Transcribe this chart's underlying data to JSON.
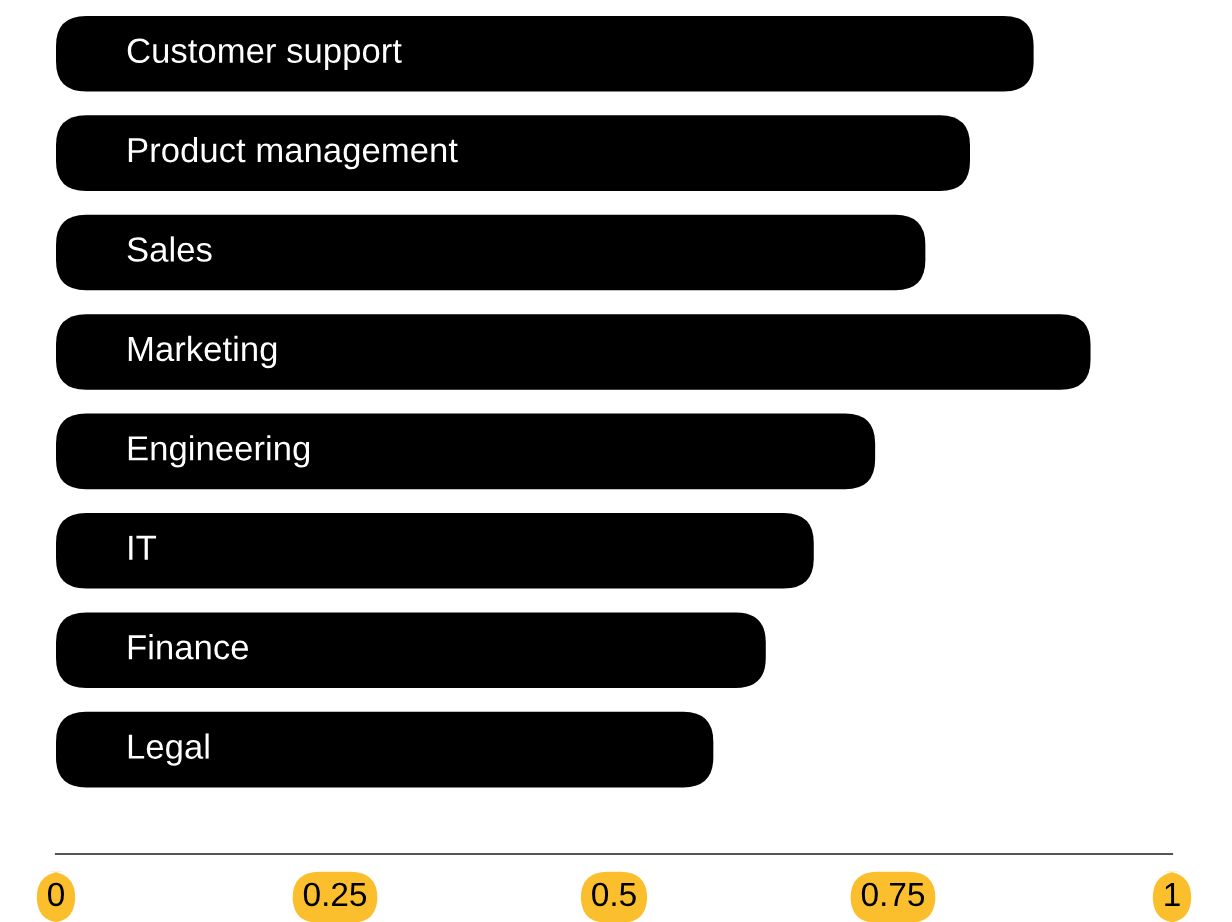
{
  "chart_data": {
    "type": "bar",
    "orientation": "horizontal",
    "categories": [
      "Customer support",
      "Product management",
      "Sales",
      "Marketing",
      "Engineering",
      "IT",
      "Finance",
      "Legal"
    ],
    "values": [
      0.876,
      0.819,
      0.779,
      0.927,
      0.734,
      0.679,
      0.636,
      0.589
    ],
    "color": "#000000",
    "xlim": [
      0,
      1
    ],
    "xticks": [
      0,
      0.25,
      0.5,
      0.75,
      1
    ],
    "grid": false
  }
}
